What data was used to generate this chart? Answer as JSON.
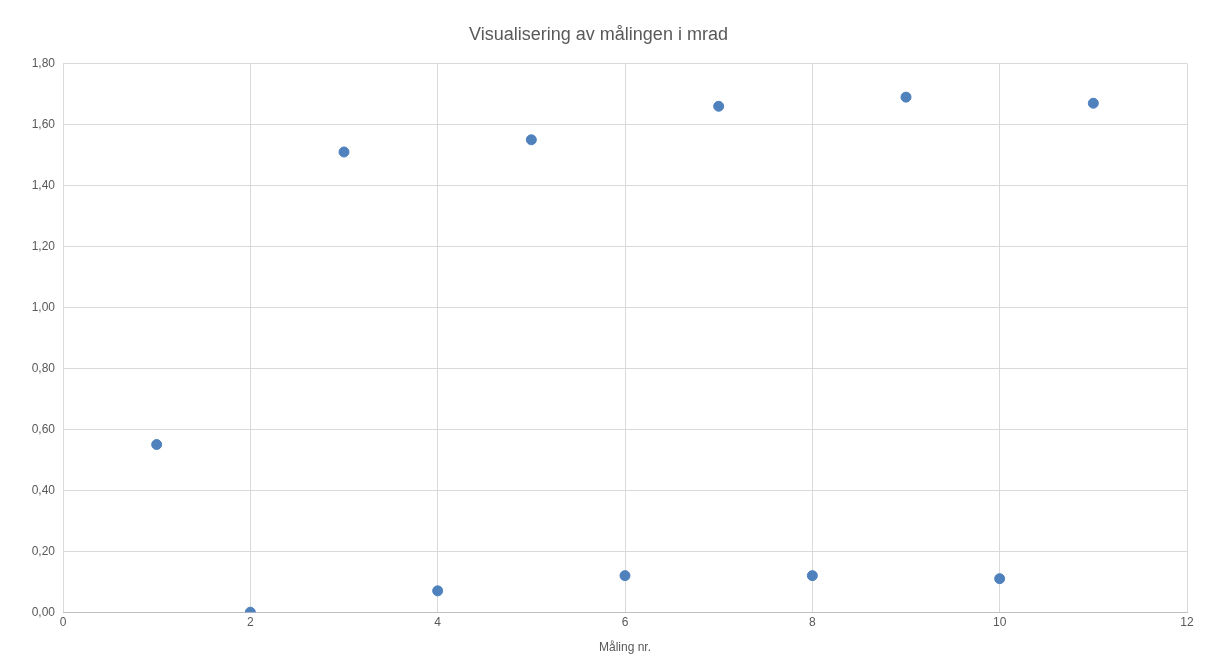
{
  "chart_data": {
    "type": "scatter",
    "title": "Visualisering av målingen i mrad",
    "xlabel": "Måling nr.",
    "x": [
      1,
      2,
      3,
      4,
      5,
      6,
      7,
      8,
      9,
      10,
      11
    ],
    "series": [
      {
        "color": "#4f81bd",
        "values": [
          0.55,
          0,
          1.51,
          0.07,
          1.55,
          0.12,
          1.66,
          0.12,
          1.69,
          0.11,
          1.67
        ]
      }
    ],
    "xlim": [
      0,
      12
    ],
    "xticks": [
      0,
      2,
      4,
      6,
      8,
      10,
      12
    ],
    "ylim": [
      0,
      1.8
    ],
    "yticks": [
      {
        "value": 0,
        "label": "0,00"
      },
      {
        "value": 0.2,
        "label": "0,20"
      },
      {
        "value": 0.4,
        "label": "0,40"
      },
      {
        "value": 0.6,
        "label": "0,60"
      },
      {
        "value": 0.8,
        "label": "0,80"
      },
      {
        "value": 1,
        "label": "1,00"
      },
      {
        "value": 1.2,
        "label": "1,20"
      },
      {
        "value": 1.4,
        "label": "1,40"
      },
      {
        "value": 1.6,
        "label": "1,60"
      },
      {
        "value": 1.8,
        "label": "1,80"
      }
    ],
    "grid": true,
    "marker": "circle",
    "legend": false
  }
}
